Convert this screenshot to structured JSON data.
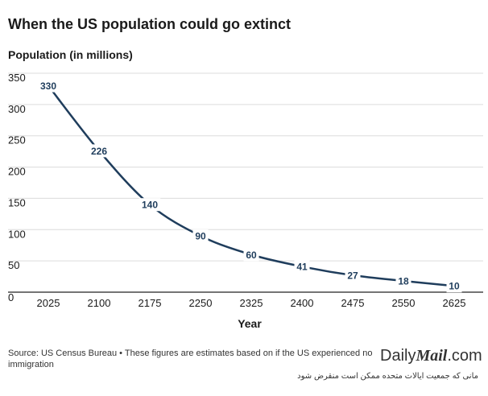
{
  "header": {
    "title": "When the US population could go extinct",
    "subtitle": "Population (in millions)"
  },
  "chart_data": {
    "type": "line",
    "title": "When the US population could go extinct",
    "ylabel": "Population (in millions)",
    "xlabel": "Year",
    "x": [
      2025,
      2100,
      2175,
      2250,
      2325,
      2400,
      2475,
      2550,
      2625
    ],
    "values": [
      330,
      226,
      140,
      90,
      60,
      41,
      27,
      18,
      10
    ],
    "data_labels": [
      "330",
      "226",
      "140",
      "90",
      "60",
      "41",
      "27",
      "18",
      "10"
    ],
    "x_ticks": [
      "2025",
      "2100",
      "2175",
      "2250",
      "2325",
      "2400",
      "2475",
      "2550",
      "2625"
    ],
    "y_ticks": [
      0,
      50,
      100,
      150,
      200,
      250,
      300,
      350
    ],
    "y_tick_labels": [
      "0",
      "50",
      "100",
      "150",
      "200",
      "250",
      "300",
      "350"
    ],
    "ylim": [
      0,
      350
    ],
    "grid": true,
    "line_color": "#1f3d5c"
  },
  "footer": {
    "source": "Source: US Census Bureau • These figures are estimates based on if the US experienced no immigration",
    "brand_part1": "Daily",
    "brand_part2": "Mail",
    "brand_part3": ".com",
    "caption": "مانی که جمعیت ایالات متحده ممکن است منقرض شود"
  }
}
